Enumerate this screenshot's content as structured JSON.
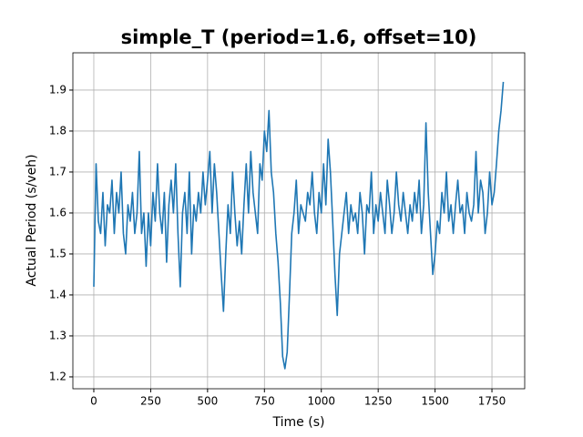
{
  "chart_data": {
    "type": "line",
    "title": "simple_T (period=1.6, offset=10)",
    "xlabel": "Time (s)",
    "ylabel": "Actual Period (s/veh)",
    "color": "#1f77b4",
    "title_color": "#8b0000",
    "grid": true,
    "xlim": [
      -92,
      1894
    ],
    "ylim": [
      1.171,
      1.991
    ],
    "xticks": [
      0,
      250,
      500,
      750,
      1000,
      1250,
      1500,
      1750
    ],
    "yticks": [
      1.2,
      1.3,
      1.4,
      1.5,
      1.6,
      1.7,
      1.8,
      1.9
    ],
    "x": [
      0,
      10,
      20,
      30,
      40,
      50,
      60,
      70,
      80,
      90,
      100,
      110,
      120,
      130,
      140,
      150,
      160,
      170,
      180,
      190,
      200,
      210,
      220,
      230,
      240,
      250,
      260,
      270,
      280,
      290,
      300,
      310,
      320,
      330,
      340,
      350,
      360,
      370,
      380,
      390,
      400,
      410,
      420,
      430,
      440,
      450,
      460,
      470,
      480,
      490,
      500,
      510,
      520,
      530,
      540,
      550,
      560,
      570,
      580,
      590,
      600,
      610,
      620,
      630,
      640,
      650,
      660,
      670,
      680,
      690,
      700,
      710,
      720,
      730,
      740,
      750,
      760,
      770,
      780,
      790,
      800,
      810,
      820,
      830,
      840,
      850,
      860,
      870,
      880,
      890,
      900,
      910,
      920,
      930,
      940,
      950,
      960,
      970,
      980,
      990,
      1000,
      1010,
      1020,
      1030,
      1040,
      1050,
      1060,
      1070,
      1080,
      1090,
      1100,
      1110,
      1120,
      1130,
      1140,
      1150,
      1160,
      1170,
      1180,
      1190,
      1200,
      1210,
      1220,
      1230,
      1240,
      1250,
      1260,
      1270,
      1280,
      1290,
      1300,
      1310,
      1320,
      1330,
      1340,
      1350,
      1360,
      1370,
      1380,
      1390,
      1400,
      1410,
      1420,
      1430,
      1440,
      1450,
      1460,
      1470,
      1480,
      1490,
      1500,
      1510,
      1520,
      1530,
      1540,
      1550,
      1560,
      1570,
      1580,
      1590,
      1600,
      1610,
      1620,
      1630,
      1640,
      1650,
      1660,
      1670,
      1680,
      1690,
      1700,
      1710,
      1720,
      1730,
      1740,
      1750,
      1760,
      1770,
      1780,
      1790,
      1800
    ],
    "values": [
      1.42,
      1.72,
      1.58,
      1.55,
      1.65,
      1.52,
      1.62,
      1.6,
      1.68,
      1.55,
      1.65,
      1.6,
      1.7,
      1.55,
      1.5,
      1.62,
      1.58,
      1.65,
      1.55,
      1.6,
      1.75,
      1.55,
      1.6,
      1.47,
      1.6,
      1.52,
      1.65,
      1.58,
      1.72,
      1.6,
      1.55,
      1.65,
      1.48,
      1.62,
      1.68,
      1.6,
      1.72,
      1.55,
      1.42,
      1.6,
      1.65,
      1.55,
      1.7,
      1.5,
      1.62,
      1.58,
      1.65,
      1.6,
      1.7,
      1.62,
      1.68,
      1.75,
      1.6,
      1.72,
      1.65,
      1.55,
      1.45,
      1.36,
      1.5,
      1.62,
      1.55,
      1.7,
      1.6,
      1.52,
      1.58,
      1.5,
      1.62,
      1.72,
      1.6,
      1.75,
      1.65,
      1.6,
      1.55,
      1.72,
      1.68,
      1.8,
      1.75,
      1.85,
      1.7,
      1.65,
      1.55,
      1.48,
      1.38,
      1.25,
      1.22,
      1.26,
      1.4,
      1.55,
      1.6,
      1.68,
      1.55,
      1.62,
      1.6,
      1.58,
      1.65,
      1.62,
      1.7,
      1.6,
      1.55,
      1.65,
      1.6,
      1.72,
      1.62,
      1.78,
      1.7,
      1.58,
      1.45,
      1.35,
      1.5,
      1.55,
      1.6,
      1.65,
      1.55,
      1.62,
      1.58,
      1.6,
      1.55,
      1.65,
      1.6,
      1.5,
      1.62,
      1.6,
      1.7,
      1.55,
      1.62,
      1.58,
      1.65,
      1.6,
      1.55,
      1.68,
      1.62,
      1.55,
      1.6,
      1.7,
      1.62,
      1.58,
      1.65,
      1.6,
      1.55,
      1.62,
      1.58,
      1.65,
      1.6,
      1.68,
      1.55,
      1.62,
      1.82,
      1.65,
      1.55,
      1.45,
      1.5,
      1.58,
      1.55,
      1.65,
      1.6,
      1.7,
      1.58,
      1.62,
      1.55,
      1.62,
      1.68,
      1.6,
      1.62,
      1.55,
      1.65,
      1.6,
      1.58,
      1.62,
      1.75,
      1.6,
      1.68,
      1.65,
      1.55,
      1.6,
      1.7,
      1.62,
      1.65,
      1.72,
      1.8,
      1.85,
      1.92
    ]
  }
}
